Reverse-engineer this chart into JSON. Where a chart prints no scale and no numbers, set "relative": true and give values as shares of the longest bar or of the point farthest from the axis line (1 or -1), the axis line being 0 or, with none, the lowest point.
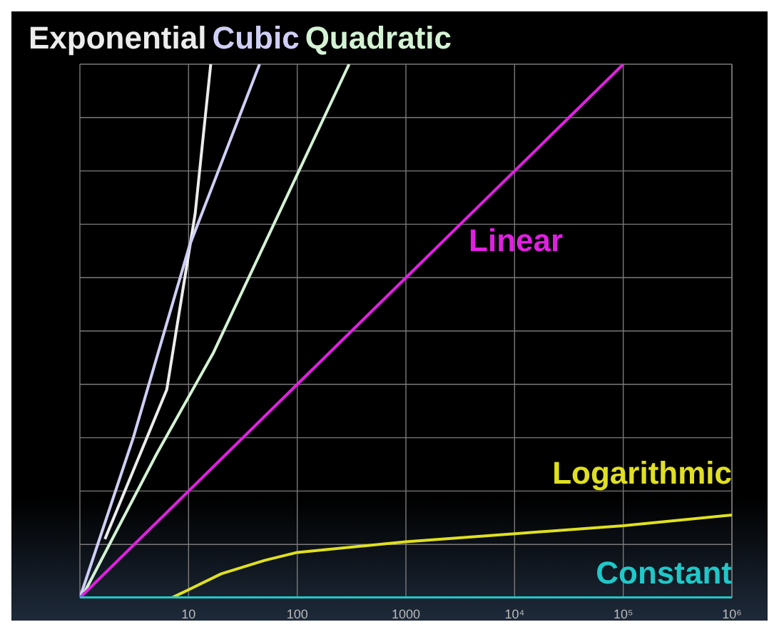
{
  "chart_data": {
    "type": "line",
    "relative": true,
    "log": "x",
    "grid": true,
    "line_style": "solid",
    "marker": "none",
    "xlim": [
      1,
      1000000
    ],
    "xticks": [
      10,
      100,
      1000,
      {
        "value": 10000,
        "label": "10⁴"
      },
      {
        "value": 100000,
        "label": "10⁵"
      },
      {
        "value": 1000000,
        "label": "10⁶"
      }
    ],
    "series": [
      {
        "name": "Exponential",
        "color": "#ececec",
        "x": [
          1.7,
          6.3,
          11.5,
          16
        ],
        "values": [
          0.11,
          0.39,
          0.72,
          1
        ]
      },
      {
        "name": "Cubic",
        "color": "#cfcff5",
        "x": [
          1,
          3.1,
          10.2,
          45
        ],
        "values": [
          0,
          0.3,
          0.66,
          1
        ]
      },
      {
        "name": "Quadratic",
        "color": "#d4f2d4",
        "x": [
          1.1,
          5.1,
          17,
          300
        ],
        "values": [
          0.01,
          0.27,
          0.46,
          1
        ]
      },
      {
        "name": "Linear",
        "color": "#e020e0",
        "x": [
          1,
          100,
          100000
        ],
        "values": [
          0,
          0.4,
          1
        ]
      },
      {
        "name": "Logarithmic",
        "color": "#e0e020",
        "x": [
          7,
          10,
          20,
          50,
          100,
          1000,
          10000,
          100000,
          1000000
        ],
        "values": [
          0,
          0.015,
          0.045,
          0.07,
          0.085,
          0.105,
          0.12,
          0.135,
          0.155
        ]
      },
      {
        "name": "Constant",
        "color": "#20c8c8",
        "x": [
          1,
          1000000
        ],
        "values": [
          0,
          0
        ]
      }
    ]
  }
}
